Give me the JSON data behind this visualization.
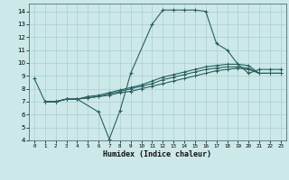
{
  "xlabel": "Humidex (Indice chaleur)",
  "bg_color": "#cce8e8",
  "line_color": "#2a6060",
  "xlim": [
    -0.5,
    23.5
  ],
  "ylim": [
    4,
    14.6
  ],
  "xticks": [
    0,
    1,
    2,
    3,
    4,
    5,
    6,
    7,
    8,
    9,
    10,
    11,
    12,
    13,
    14,
    15,
    16,
    17,
    18,
    19,
    20,
    21,
    22,
    23
  ],
  "yticks": [
    4,
    5,
    6,
    7,
    8,
    9,
    10,
    11,
    12,
    13,
    14
  ],
  "curve_main_x": [
    0,
    1,
    2,
    3,
    4,
    6,
    7,
    8,
    9,
    11,
    12,
    13,
    14,
    15,
    16,
    17,
    18,
    19,
    20,
    21,
    22,
    23
  ],
  "curve_main_y": [
    8.8,
    7.0,
    7.0,
    7.2,
    7.2,
    6.2,
    4.1,
    6.3,
    9.2,
    13.0,
    14.1,
    14.1,
    14.1,
    14.1,
    14.0,
    11.5,
    11.0,
    9.9,
    9.2,
    9.5,
    9.5,
    9.5
  ],
  "flat_lines": [
    {
      "x": [
        1,
        2,
        3,
        4,
        5,
        6,
        7,
        8,
        9,
        10,
        11,
        12,
        13,
        14,
        15,
        16,
        17,
        18,
        19,
        20,
        21,
        22,
        23
      ],
      "y": [
        7.0,
        7.0,
        7.2,
        7.2,
        7.3,
        7.4,
        7.5,
        7.7,
        7.8,
        8.0,
        8.2,
        8.4,
        8.6,
        8.8,
        9.0,
        9.2,
        9.4,
        9.5,
        9.6,
        9.5,
        9.2,
        9.2,
        9.2
      ]
    },
    {
      "x": [
        1,
        2,
        3,
        4,
        5,
        6,
        7,
        8,
        9,
        10,
        11,
        12,
        13,
        14,
        15,
        16,
        17,
        18,
        19,
        20,
        21,
        22,
        23
      ],
      "y": [
        7.0,
        7.0,
        7.2,
        7.2,
        7.3,
        7.4,
        7.6,
        7.8,
        8.0,
        8.2,
        8.4,
        8.7,
        8.9,
        9.1,
        9.3,
        9.5,
        9.6,
        9.7,
        9.7,
        9.6,
        9.2,
        9.2,
        9.2
      ]
    },
    {
      "x": [
        1,
        2,
        3,
        4,
        5,
        6,
        7,
        8,
        9,
        10,
        11,
        12,
        13,
        14,
        15,
        16,
        17,
        18,
        19,
        20,
        21,
        22,
        23
      ],
      "y": [
        7.0,
        7.0,
        7.2,
        7.2,
        7.4,
        7.5,
        7.7,
        7.9,
        8.1,
        8.3,
        8.6,
        8.9,
        9.1,
        9.3,
        9.5,
        9.7,
        9.8,
        9.9,
        9.9,
        9.8,
        9.2,
        9.2,
        9.2
      ]
    }
  ]
}
